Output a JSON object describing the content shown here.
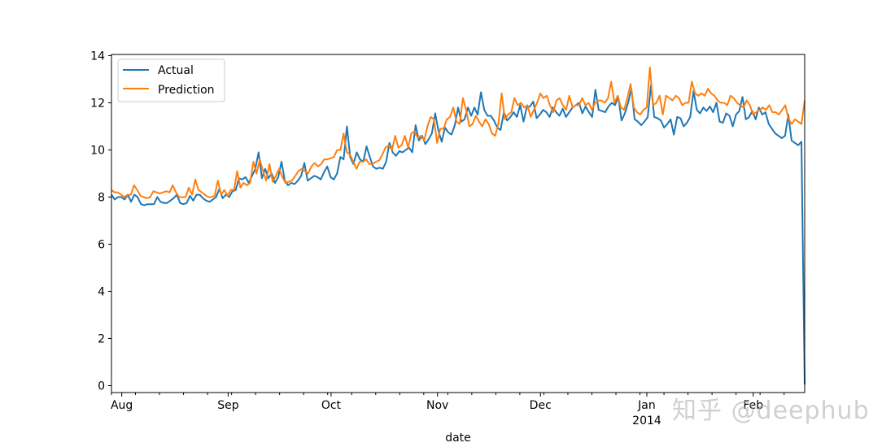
{
  "chart_data": {
    "type": "line",
    "title": "",
    "xlabel": "date",
    "ylabel": "",
    "ylim": [
      0,
      14
    ],
    "yticks": [
      0,
      2,
      4,
      6,
      8,
      10,
      12,
      14
    ],
    "xlim_days": [
      0,
      202
    ],
    "x_start_date": "2013-07-29",
    "x_end_date": "2014-02-17",
    "xticks": [
      {
        "day": 3,
        "label": "Aug",
        "sublabel": ""
      },
      {
        "day": 34,
        "label": "Sep",
        "sublabel": ""
      },
      {
        "day": 64,
        "label": "Oct",
        "sublabel": ""
      },
      {
        "day": 95,
        "label": "Nov",
        "sublabel": ""
      },
      {
        "day": 125,
        "label": "Dec",
        "sublabel": ""
      },
      {
        "day": 156,
        "label": "Jan",
        "sublabel": "2014"
      },
      {
        "day": 187,
        "label": "Feb",
        "sublabel": ""
      }
    ],
    "minor_tick_every_days": 7,
    "legend": {
      "position": "top-left",
      "entries": [
        "Actual",
        "Prediction"
      ]
    },
    "series": [
      {
        "name": "Actual",
        "color": "#1f77b4",
        "values": [
          8.1,
          7.9,
          8.0,
          8.0,
          7.9,
          8.1,
          7.8,
          8.1,
          8.0,
          7.7,
          7.65,
          7.7,
          7.7,
          7.7,
          8.0,
          7.8,
          7.75,
          7.75,
          7.85,
          7.95,
          8.1,
          7.75,
          7.7,
          7.75,
          8.05,
          7.85,
          8.1,
          8.1,
          7.95,
          7.85,
          7.8,
          7.9,
          8.0,
          8.35,
          7.95,
          8.1,
          8.0,
          8.25,
          8.3,
          8.8,
          8.75,
          8.85,
          8.6,
          8.9,
          9.2,
          9.9,
          8.8,
          9.2,
          8.8,
          9.0,
          8.6,
          8.85,
          9.5,
          8.7,
          8.5,
          8.6,
          8.55,
          8.7,
          8.9,
          9.45,
          8.7,
          8.8,
          8.9,
          8.85,
          8.75,
          9.05,
          9.3,
          8.85,
          8.75,
          9.0,
          9.7,
          9.6,
          11.0,
          9.7,
          9.4,
          9.9,
          9.6,
          9.5,
          10.15,
          9.7,
          9.3,
          9.2,
          9.25,
          9.2,
          9.5,
          10.3,
          9.9,
          9.75,
          9.95,
          9.9,
          10.0,
          10.1,
          9.9,
          11.05,
          10.4,
          10.6,
          10.25,
          10.45,
          10.7,
          11.55,
          10.8,
          10.35,
          10.95,
          10.75,
          10.65,
          11.05,
          11.8,
          11.2,
          11.3,
          11.8,
          11.45,
          11.8,
          11.5,
          12.45,
          11.7,
          11.45,
          11.45,
          11.25,
          10.95,
          10.85,
          11.6,
          11.25,
          11.4,
          11.6,
          11.4,
          11.9,
          11.2,
          11.8,
          11.85,
          12.05,
          11.35,
          11.5,
          11.7,
          11.6,
          11.4,
          11.8,
          11.6,
          11.45,
          11.75,
          11.4,
          11.6,
          11.8,
          11.9,
          12.0,
          11.55,
          11.85,
          11.6,
          11.4,
          12.55,
          11.7,
          11.65,
          11.6,
          11.85,
          12.0,
          11.9,
          12.25,
          11.25,
          11.55,
          12.0,
          12.6,
          11.3,
          11.2,
          11.05,
          11.2,
          11.4,
          12.75,
          11.4,
          11.35,
          11.25,
          10.95,
          11.1,
          11.3,
          10.65,
          11.4,
          11.35,
          11.0,
          11.15,
          11.4,
          12.5,
          11.7,
          11.55,
          11.8,
          11.65,
          11.85,
          11.6,
          12.0,
          11.2,
          11.15,
          11.55,
          11.45,
          11.0,
          11.5,
          11.65,
          12.25,
          11.3,
          11.4,
          11.65,
          11.3,
          11.8,
          11.5,
          11.6,
          11.1,
          10.9,
          10.7,
          10.6,
          10.5,
          10.6,
          11.5,
          10.4,
          10.3,
          10.2,
          10.35,
          0.05
        ]
      },
      {
        "name": "Prediction",
        "color": "#ff7f0e",
        "values": [
          8.3,
          8.2,
          8.2,
          8.1,
          8.0,
          8.1,
          8.1,
          8.5,
          8.3,
          8.05,
          8.0,
          7.95,
          8.0,
          8.25,
          8.2,
          8.15,
          8.2,
          8.25,
          8.2,
          8.5,
          8.2,
          8.0,
          8.0,
          8.0,
          8.4,
          8.1,
          8.75,
          8.3,
          8.2,
          8.1,
          8.0,
          8.0,
          8.05,
          8.7,
          8.1,
          8.3,
          8.05,
          8.3,
          8.3,
          9.1,
          8.4,
          8.6,
          8.5,
          8.6,
          9.5,
          9.0,
          9.6,
          9.1,
          8.7,
          9.4,
          8.65,
          8.9,
          9.2,
          8.85,
          8.6,
          8.65,
          8.7,
          8.9,
          9.1,
          9.2,
          9.1,
          9.0,
          9.3,
          9.45,
          9.3,
          9.4,
          9.6,
          9.6,
          9.65,
          9.7,
          10.0,
          10.0,
          10.7,
          9.9,
          9.8,
          9.5,
          9.2,
          9.5,
          9.5,
          9.6,
          9.4,
          9.4,
          9.5,
          9.55,
          9.8,
          10.1,
          10.2,
          10.0,
          10.6,
          10.1,
          10.2,
          10.6,
          10.1,
          10.7,
          10.8,
          10.5,
          10.6,
          10.4,
          11.0,
          11.4,
          11.3,
          10.3,
          10.9,
          10.9,
          11.3,
          11.4,
          11.8,
          11.2,
          11.1,
          12.2,
          11.7,
          11.0,
          11.1,
          11.45,
          11.2,
          11.0,
          11.3,
          11.1,
          10.7,
          10.6,
          11.1,
          12.4,
          11.3,
          11.5,
          11.6,
          12.2,
          11.9,
          12.0,
          11.8,
          11.9,
          11.4,
          11.7,
          12.0,
          12.4,
          12.2,
          12.3,
          11.9,
          11.6,
          12.1,
          12.2,
          11.9,
          11.7,
          12.3,
          11.8,
          11.9,
          11.9,
          12.2,
          11.9,
          12.0,
          11.7,
          12.0,
          12.1,
          12.1,
          12.0,
          12.2,
          12.9,
          12.0,
          12.3,
          11.8,
          11.7,
          12.2,
          12.8,
          11.8,
          11.6,
          11.5,
          11.7,
          11.8,
          13.5,
          11.9,
          12.0,
          12.3,
          11.5,
          12.3,
          12.2,
          12.1,
          12.3,
          12.2,
          11.9,
          12.0,
          12.0,
          12.9,
          12.4,
          12.3,
          12.4,
          12.3,
          12.6,
          12.4,
          12.3,
          12.1,
          12.0,
          12.0,
          11.9,
          12.3,
          12.2,
          12.0,
          11.9,
          11.8,
          12.1,
          11.9,
          11.5,
          11.6,
          11.7,
          11.8,
          11.7,
          11.9,
          11.6,
          11.6,
          11.5,
          11.7,
          11.9,
          11.3,
          11.1,
          11.3,
          11.2,
          11.1,
          12.1
        ]
      }
    ]
  },
  "watermark": {
    "text": "知乎 @deephub"
  }
}
